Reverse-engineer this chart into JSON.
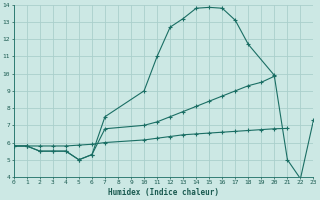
{
  "xlabel": "Humidex (Indice chaleur)",
  "bg_color": "#cce8e4",
  "grid_color": "#aacfcc",
  "line_color": "#1a6e64",
  "line1_x": [
    0,
    1,
    2,
    3,
    4,
    5,
    6,
    7,
    10,
    11,
    12,
    13,
    14,
    15,
    16,
    17,
    18,
    20
  ],
  "line1_y": [
    5.8,
    5.8,
    5.5,
    5.5,
    5.5,
    5.0,
    5.3,
    7.5,
    9.0,
    11.0,
    12.7,
    13.2,
    13.8,
    13.85,
    13.8,
    13.1,
    11.7,
    9.9
  ],
  "line2_x": [
    0,
    1,
    2,
    3,
    4,
    5,
    6,
    7,
    10,
    11,
    12,
    13,
    14,
    15,
    16,
    17,
    18,
    19,
    20,
    21,
    22,
    23
  ],
  "line2_y": [
    5.8,
    5.8,
    5.5,
    5.5,
    5.5,
    5.0,
    5.3,
    6.8,
    7.0,
    7.2,
    7.5,
    7.8,
    8.1,
    8.4,
    8.7,
    9.0,
    9.3,
    9.5,
    9.85,
    5.0,
    3.9,
    7.3
  ],
  "line3_x": [
    0,
    1,
    2,
    3,
    4,
    5,
    6,
    7,
    10,
    11,
    12,
    13,
    14,
    15,
    16,
    17,
    18,
    19,
    20,
    21
  ],
  "line3_y": [
    5.8,
    5.8,
    5.8,
    5.8,
    5.8,
    5.85,
    5.9,
    6.0,
    6.15,
    6.25,
    6.35,
    6.45,
    6.5,
    6.55,
    6.6,
    6.65,
    6.7,
    6.75,
    6.8,
    6.82
  ],
  "xlim": [
    0,
    23
  ],
  "ylim": [
    4,
    14
  ],
  "xticks": [
    0,
    1,
    2,
    3,
    4,
    5,
    6,
    7,
    8,
    9,
    10,
    11,
    12,
    13,
    14,
    15,
    16,
    17,
    18,
    19,
    20,
    21,
    22,
    23
  ],
  "yticks": [
    4,
    5,
    6,
    7,
    8,
    9,
    10,
    11,
    12,
    13,
    14
  ]
}
